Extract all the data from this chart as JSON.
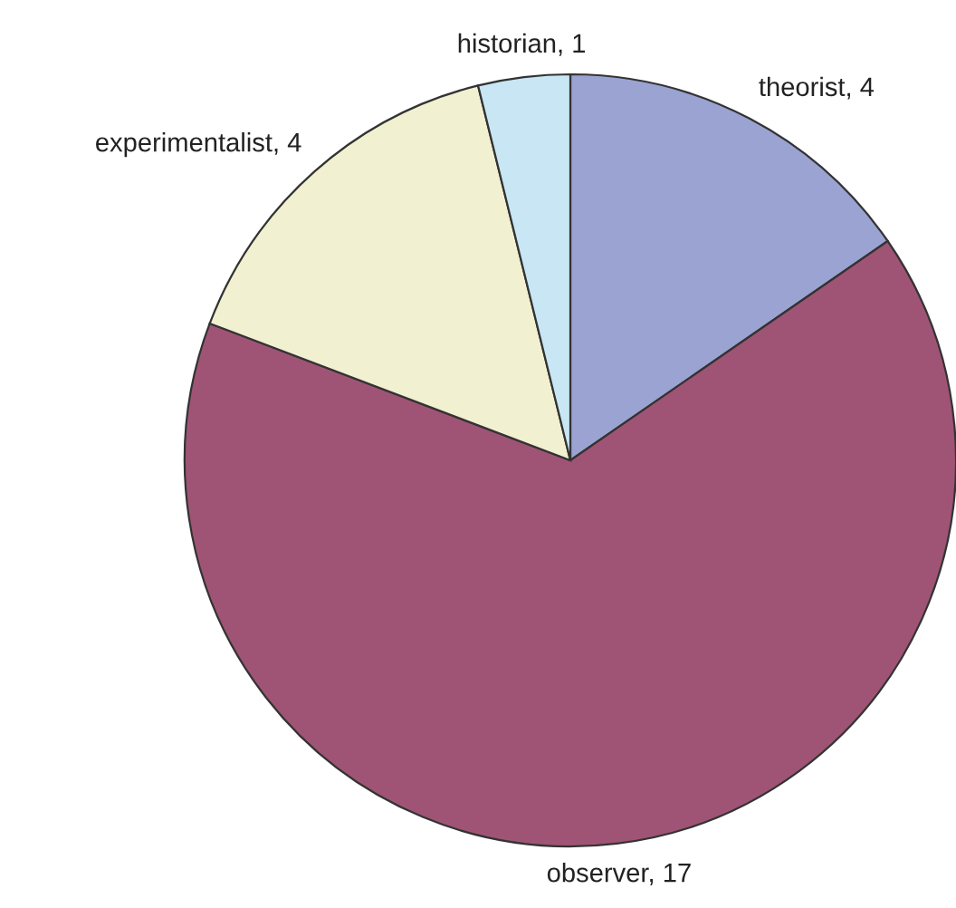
{
  "chart_data": {
    "type": "pie",
    "categories": [
      "theorist, 4",
      "observer, 17",
      "experimentalist, 4",
      "historian, 1"
    ],
    "values": [
      4,
      17,
      4,
      1
    ],
    "colors": [
      "#9aa3d1",
      "#a05475",
      "#f1f0d0",
      "#c8e6f4"
    ]
  }
}
